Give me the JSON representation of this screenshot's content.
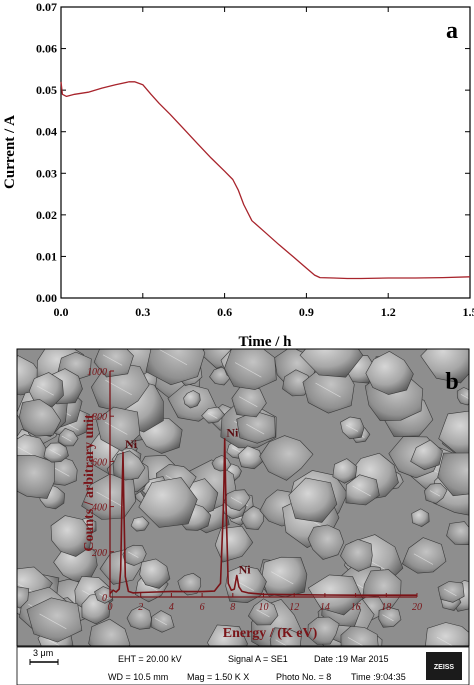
{
  "chart_data": [
    {
      "type": "line",
      "panel_label": "a",
      "xlabel": "Time / h",
      "ylabel": "Current / A",
      "xlim": [
        0,
        1.5
      ],
      "ylim": [
        0,
        0.07
      ],
      "xticks": [
        "0.0",
        "0.3",
        "0.6",
        "0.9",
        "1.2",
        "1.5"
      ],
      "yticks": [
        "0.00",
        "0.01",
        "0.02",
        "0.03",
        "0.04",
        "0.05",
        "0.06",
        "0.07"
      ],
      "grid": false,
      "series": [
        {
          "color": "#a8242c",
          "x": [
            0.0,
            0.005,
            0.02,
            0.05,
            0.1,
            0.15,
            0.2,
            0.25,
            0.27,
            0.3,
            0.33,
            0.36,
            0.4,
            0.45,
            0.5,
            0.55,
            0.6,
            0.63,
            0.65,
            0.67,
            0.7,
            0.75,
            0.8,
            0.85,
            0.9,
            0.93,
            0.95,
            1.0,
            1.05,
            1.1,
            1.2,
            1.3,
            1.4,
            1.5
          ],
          "y": [
            0.052,
            0.049,
            0.0485,
            0.049,
            0.0495,
            0.0505,
            0.0513,
            0.052,
            0.052,
            0.0513,
            0.049,
            0.0468,
            0.0442,
            0.0407,
            0.0372,
            0.0337,
            0.0305,
            0.0285,
            0.026,
            0.0225,
            0.0186,
            0.0157,
            0.0128,
            0.01,
            0.0072,
            0.0055,
            0.0049,
            0.0048,
            0.0047,
            0.0047,
            0.0048,
            0.0048,
            0.0049,
            0.0051
          ]
        }
      ]
    },
    {
      "type": "line",
      "panel_label": "b",
      "xlabel": "Energy / (K eV)",
      "ylabel": "Counts / arbitrary unit",
      "xlim": [
        0,
        20
      ],
      "ylim": [
        0,
        1000
      ],
      "xticks": [
        "0",
        "2",
        "4",
        "6",
        "8",
        "10",
        "12",
        "14",
        "16",
        "18",
        "20"
      ],
      "yticks": [
        "0",
        "200",
        "400",
        "600",
        "800",
        "1000"
      ],
      "grid": false,
      "peak_labels": [
        {
          "text": "Ni",
          "x": 0.85,
          "y": 660
        },
        {
          "text": "Ni",
          "x": 7.45,
          "y": 710
        },
        {
          "text": "Ni",
          "x": 8.25,
          "y": 105
        }
      ],
      "series": [
        {
          "color": "#7a1418",
          "x": [
            0.0,
            0.2,
            0.4,
            0.6,
            0.7,
            0.8,
            0.85,
            0.9,
            1.0,
            1.2,
            1.5,
            2.0,
            3.0,
            4.0,
            5.0,
            6.0,
            6.8,
            7.2,
            7.4,
            7.47,
            7.55,
            7.7,
            7.9,
            8.1,
            8.26,
            8.4,
            8.6,
            9.0,
            10.0,
            12.0,
            14.0,
            16.0,
            18.0,
            20.0
          ],
          "y": [
            15,
            30,
            22,
            35,
            120,
            500,
            640,
            420,
            90,
            25,
            18,
            20,
            22,
            25,
            24,
            24,
            26,
            60,
            420,
            700,
            430,
            60,
            30,
            35,
            95,
            45,
            25,
            18,
            12,
            10,
            9,
            8,
            8,
            8
          ]
        }
      ]
    }
  ],
  "sem_info": {
    "scale_bar": "3 μm",
    "eht": "EHT = 20.00 kV",
    "wd": "WD = 10.5 mm",
    "signal": "Signal A = SE1",
    "mag": "Mag =   1.50 K X",
    "date": "Date :19 Mar 2015",
    "photo": "Photo No. = 8",
    "time": "Time :9:04:35",
    "logo": "ZEISS"
  }
}
